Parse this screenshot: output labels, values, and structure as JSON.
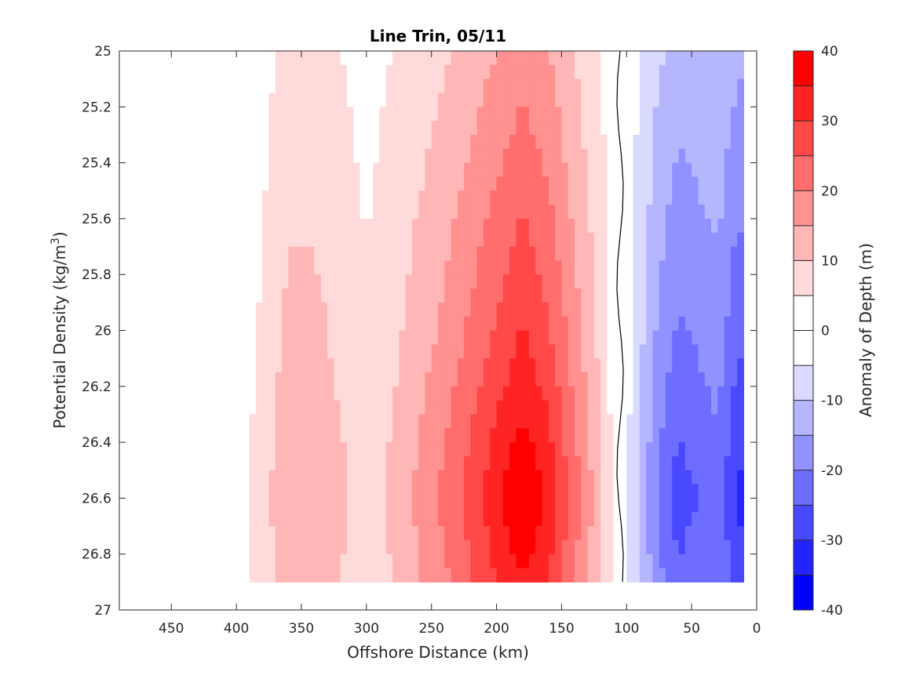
{
  "chart_data": {
    "type": "heatmap",
    "subtype": "filled-contour",
    "title": "Line Trin, 05/11",
    "xlabel": "Offshore Distance (km)",
    "ylabel": "Potential Density (kg/m³)",
    "colorbar_label": "Anomaly of Depth (m)",
    "x_reversed": true,
    "xlim": [
      490,
      0
    ],
    "ylim": [
      25,
      27
    ],
    "y_reversed": true,
    "x_ticks": [
      450,
      400,
      350,
      300,
      250,
      200,
      150,
      100,
      50,
      0
    ],
    "y_ticks": [
      25,
      25.2,
      25.4,
      25.6,
      25.8,
      26,
      26.2,
      26.4,
      26.6,
      26.8,
      27
    ],
    "y_tick_labels": [
      "25",
      "25.2",
      "25.4",
      "25.6",
      "25.8",
      "26",
      "26.2",
      "26.4",
      "26.6",
      "26.8",
      "27"
    ],
    "colorbar_ticks": [
      40,
      30,
      20,
      10,
      0,
      -10,
      -20,
      -30,
      -40
    ],
    "colorbar_levels": [
      -40,
      -35,
      -30,
      -25,
      -20,
      -15,
      -10,
      -5,
      5,
      10,
      15,
      20,
      25,
      30,
      35,
      40
    ],
    "colorbar_colors": [
      "#0000ff",
      "#2424ff",
      "#4848ff",
      "#6d6dff",
      "#9191ff",
      "#b6b6ff",
      "#dadaff",
      "#ffffff",
      "#ffdada",
      "#ffb6b6",
      "#ff9191",
      "#ff6d6d",
      "#ff4848",
      "#ff2424",
      "#ff0000"
    ],
    "data_extent": {
      "x": [
        490,
        10
      ],
      "y": [
        25,
        26.9
      ]
    },
    "zero_contour": "black",
    "grid": false,
    "columns": [
      {
        "x": 480,
        "value": 0
      },
      {
        "x": 460,
        "value": 2
      },
      {
        "x": 440,
        "value": 2
      },
      {
        "x": 420,
        "value": 1
      },
      {
        "x": 400,
        "value": 2
      },
      {
        "x": 380,
        "value": 6
      },
      {
        "x": 360,
        "value": 12
      },
      {
        "x": 340,
        "value": 12
      },
      {
        "x": 320,
        "value": 9
      },
      {
        "x": 300,
        "value": 6
      },
      {
        "x": 280,
        "value": 9
      },
      {
        "x": 260,
        "value": 13
      },
      {
        "x": 240,
        "value": 17
      },
      {
        "x": 220,
        "value": 22
      },
      {
        "x": 200,
        "value": 27
      },
      {
        "x": 180,
        "value": 32
      },
      {
        "x": 160,
        "value": 27
      },
      {
        "x": 140,
        "value": 18
      },
      {
        "x": 120,
        "value": 9
      },
      {
        "x": 105,
        "value": 0
      },
      {
        "x": 90,
        "value": -9
      },
      {
        "x": 75,
        "value": -17
      },
      {
        "x": 60,
        "value": -22
      },
      {
        "x": 45,
        "value": -20
      },
      {
        "x": 30,
        "value": -18
      },
      {
        "x": 15,
        "value": -25
      }
    ],
    "depth_boost": [
      {
        "y": 25.0,
        "value": 0.55
      },
      {
        "y": 25.5,
        "value": 0.75
      },
      {
        "y": 26.0,
        "value": 0.95
      },
      {
        "y": 26.4,
        "value": 1.15
      },
      {
        "y": 26.6,
        "value": 1.25
      },
      {
        "y": 26.9,
        "value": 1.1
      }
    ]
  }
}
